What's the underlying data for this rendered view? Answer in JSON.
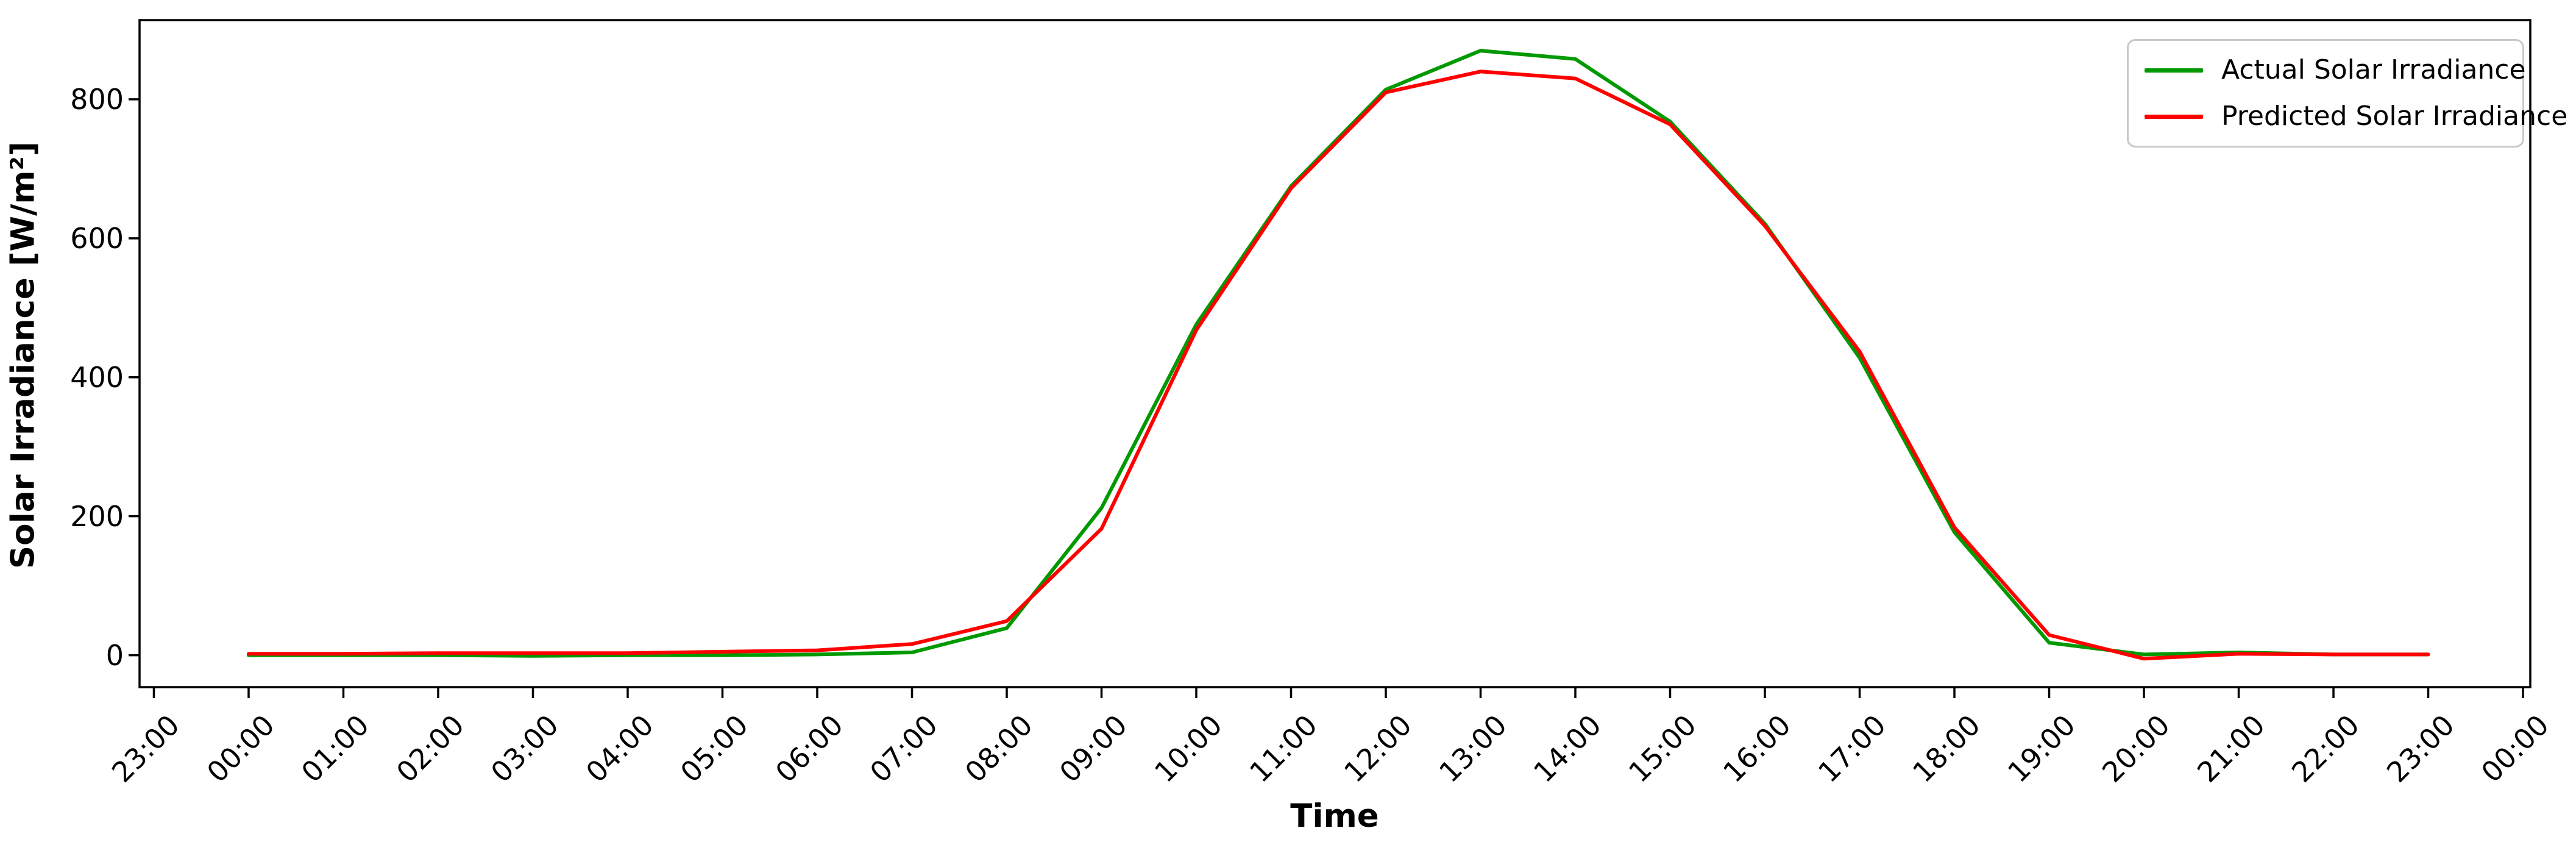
{
  "figure": {
    "y_axis_label": "Solar Irradiance [W/m²]",
    "x_axis_label": "Time"
  },
  "legend": {
    "position": "upper right",
    "items": [
      {
        "label": "Actual Solar Irradiance",
        "color": "#009900"
      },
      {
        "label": "Predicted Solar Irradiance",
        "color": "#ff0000"
      }
    ]
  },
  "chart_data": {
    "type": "line",
    "title": "",
    "xlabel": "Time",
    "ylabel": "Solar Irradiance [W/m²]",
    "grid": false,
    "background": "#ffffff",
    "axis_color": "#000000",
    "x": [
      "00:00",
      "01:00",
      "02:00",
      "03:00",
      "04:00",
      "05:00",
      "06:00",
      "07:00",
      "08:00",
      "09:00",
      "10:00",
      "11:00",
      "12:00",
      "13:00",
      "14:00",
      "15:00",
      "16:00",
      "17:00",
      "18:00",
      "19:00",
      "20:00",
      "21:00",
      "22:00",
      "23:00"
    ],
    "series": [
      {
        "name": "Actual Solar Irradiance",
        "color": "#009900",
        "values": [
          0,
          0,
          0,
          -1,
          0,
          0,
          1,
          4,
          39,
          212,
          476,
          675,
          814,
          870,
          858,
          768,
          621,
          428,
          177,
          18,
          1,
          4,
          1,
          1
        ]
      },
      {
        "name": "Predicted Solar Irradiance",
        "color": "#ff0000",
        "values": [
          2,
          2,
          3,
          3,
          3,
          5,
          7,
          16,
          49,
          182,
          468,
          672,
          810,
          840,
          830,
          764,
          618,
          437,
          184,
          29,
          -5,
          2,
          1,
          1
        ]
      }
    ],
    "y_ticks": [
      0,
      200,
      400,
      600,
      800
    ],
    "x_tick_labels": [
      "23:00",
      "00:00",
      "01:00",
      "02:00",
      "03:00",
      "04:00",
      "05:00",
      "06:00",
      "07:00",
      "08:00",
      "09:00",
      "10:00",
      "11:00",
      "12:00",
      "13:00",
      "14:00",
      "15:00",
      "16:00",
      "17:00",
      "18:00",
      "19:00",
      "20:00",
      "21:00",
      "22:00",
      "23:00",
      "00:00"
    ],
    "x_tick_hours": [
      -1,
      0,
      1,
      2,
      3,
      4,
      5,
      6,
      7,
      8,
      9,
      10,
      11,
      12,
      13,
      14,
      15,
      16,
      17,
      18,
      19,
      20,
      21,
      22,
      23,
      24
    ],
    "xlim_hours": [
      -1.151,
      24.077
    ],
    "ylim": [
      -46,
      914
    ],
    "legend_position": "upper right"
  }
}
